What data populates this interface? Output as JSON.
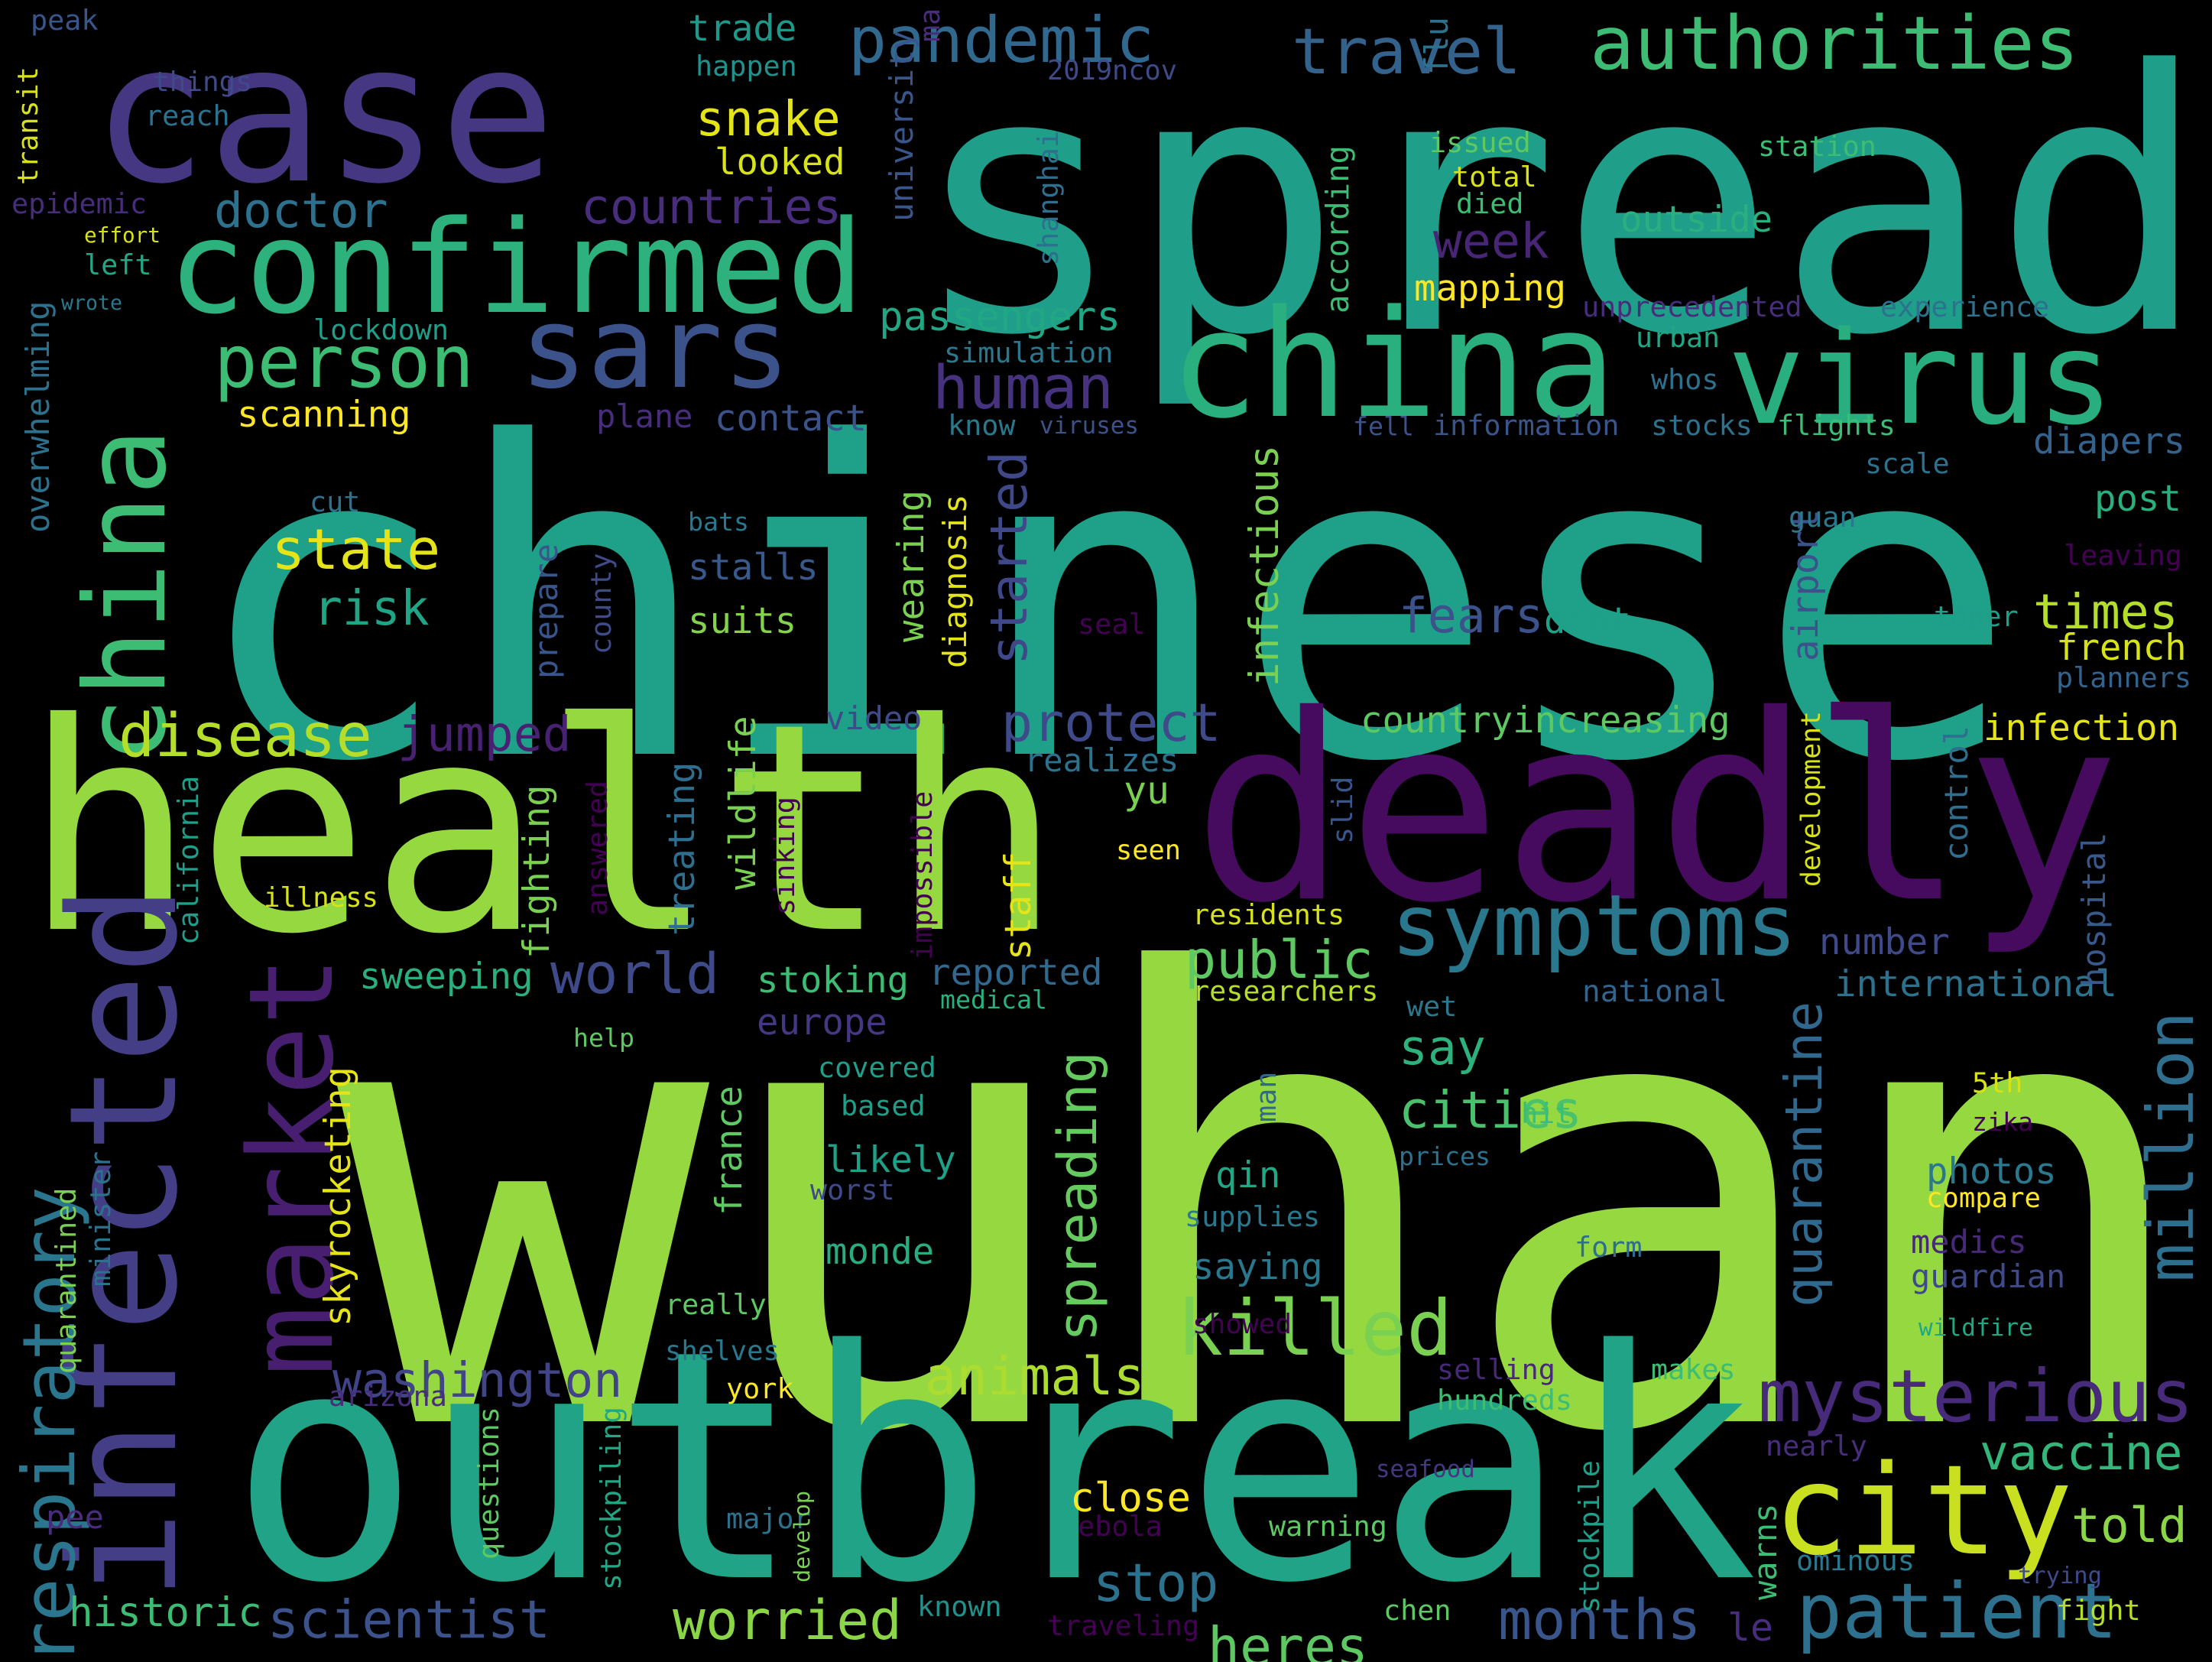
{
  "colors": {
    "background": "#000000",
    "palette": [
      "#440154",
      "#472d7b",
      "#3b528b",
      "#2c728e",
      "#21918c",
      "#28ae80",
      "#5ec962",
      "#addc30",
      "#fde725"
    ]
  },
  "words": [
    {
      "text": "wuhan",
      "color": "#95d840"
    },
    {
      "text": "chinese",
      "color": "#1fa088"
    },
    {
      "text": "spread",
      "color": "#1f9e89"
    },
    {
      "text": "outbreak",
      "color": "#20a386"
    },
    {
      "text": "health",
      "color": "#95d840"
    },
    {
      "text": "deadly",
      "color": "#460b5e"
    },
    {
      "text": "case",
      "color": "#453781"
    },
    {
      "text": "china",
      "color": "#2ab07f"
    },
    {
      "text": "virus",
      "color": "#29af7f"
    },
    {
      "text": "confirmed",
      "color": "#2db27d"
    },
    {
      "text": "infected",
      "color": "#433e85"
    },
    {
      "text": "market",
      "color": "#481f70"
    },
    {
      "text": "city",
      "color": "#c8e020"
    },
    {
      "text": "symptoms",
      "color": "#2a788e"
    },
    {
      "text": "sars",
      "color": "#3b528b"
    },
    {
      "text": "china",
      "color": "#3dbc74"
    },
    {
      "text": "mysterious",
      "color": "#472a7a"
    },
    {
      "text": "patient",
      "color": "#2d718e"
    },
    {
      "text": "killed",
      "color": "#7ad151"
    },
    {
      "text": "respiratory",
      "color": "#2a768e"
    },
    {
      "text": "million",
      "color": "#2e6e8e"
    },
    {
      "text": "authorities",
      "color": "#3dbc74"
    },
    {
      "text": "travel",
      "color": "#33638d"
    },
    {
      "text": "pandemic",
      "color": "#31688e"
    },
    {
      "text": "person",
      "color": "#3dbc74"
    },
    {
      "text": "human",
      "color": "#46327e"
    },
    {
      "text": "disease",
      "color": "#b5de2b"
    },
    {
      "text": "world",
      "color": "#3e4a89"
    },
    {
      "text": "state",
      "color": "#e5e419"
    },
    {
      "text": "washington",
      "color": "#414487"
    },
    {
      "text": "scientist",
      "color": "#3b528b"
    },
    {
      "text": "animals",
      "color": "#addc30"
    },
    {
      "text": "worried",
      "color": "#8bd646"
    },
    {
      "text": "months",
      "color": "#39568c"
    },
    {
      "text": "heres",
      "color": "#5ec962"
    },
    {
      "text": "stop",
      "color": "#2c728e"
    },
    {
      "text": "public",
      "color": "#5ec962"
    },
    {
      "text": "quarantine",
      "color": "#31688e"
    },
    {
      "text": "spreading",
      "color": "#65cb5e"
    },
    {
      "text": "protect",
      "color": "#3e4a89"
    },
    {
      "text": "jumped",
      "color": "#482173"
    },
    {
      "text": "fears",
      "color": "#3b528b"
    },
    {
      "text": "cities",
      "color": "#4ac16d"
    },
    {
      "text": "countries",
      "color": "#472d7b"
    },
    {
      "text": "snake",
      "color": "#e5e419"
    },
    {
      "text": "doctor",
      "color": "#2c728e"
    },
    {
      "text": "week",
      "color": "#482575"
    },
    {
      "text": "risk",
      "color": "#20a486"
    },
    {
      "text": "times",
      "color": "#b5de2b"
    },
    {
      "text": "vaccine",
      "color": "#32b67a"
    },
    {
      "text": "told",
      "color": "#8bd646"
    },
    {
      "text": "say",
      "color": "#2db27d"
    },
    {
      "text": "started",
      "color": "#3f4889"
    },
    {
      "text": "passengers",
      "color": "#22a785"
    },
    {
      "text": "trade",
      "color": "#1f988b"
    },
    {
      "text": "happen",
      "color": "#21918c"
    },
    {
      "text": "looked",
      "color": "#d8e219"
    },
    {
      "text": "outside",
      "color": "#2ab07f"
    },
    {
      "text": "mapping",
      "color": "#fde725"
    },
    {
      "text": "scanning",
      "color": "#fde725"
    },
    {
      "text": "contact",
      "color": "#3b528b"
    },
    {
      "text": "plane",
      "color": "#472d7b"
    },
    {
      "text": "suits",
      "color": "#84d44b"
    },
    {
      "text": "stalls",
      "color": "#38598c"
    },
    {
      "text": "dont",
      "color": "#1fa088"
    },
    {
      "text": "international",
      "color": "#2c728e"
    },
    {
      "text": "national",
      "color": "#32648e"
    },
    {
      "text": "number",
      "color": "#3e4a89"
    },
    {
      "text": "europe",
      "color": "#453781"
    },
    {
      "text": "reported",
      "color": "#31688e"
    },
    {
      "text": "stoking",
      "color": "#3dbc74"
    },
    {
      "text": "sweeping",
      "color": "#2ab07f"
    },
    {
      "text": "likely",
      "color": "#1fa088"
    },
    {
      "text": "monde",
      "color": "#27ad81"
    },
    {
      "text": "photos",
      "color": "#2a788e"
    },
    {
      "text": "medics",
      "color": "#482878"
    },
    {
      "text": "guardian",
      "color": "#3e4a89"
    },
    {
      "text": "compare",
      "color": "#fde725"
    },
    {
      "text": "saying",
      "color": "#2a788e"
    },
    {
      "text": "qin",
      "color": "#22a785"
    },
    {
      "text": "france",
      "color": "#5ec962"
    },
    {
      "text": "infection",
      "color": "#e5e419"
    },
    {
      "text": "french",
      "color": "#d8e219"
    },
    {
      "text": "diapers",
      "color": "#33638d"
    },
    {
      "text": "post",
      "color": "#2ab07f"
    },
    {
      "text": "airport",
      "color": "#3b528b"
    },
    {
      "text": "infectious",
      "color": "#7ad151"
    },
    {
      "text": "wearing",
      "color": "#7ad151"
    },
    {
      "text": "diagnosis",
      "color": "#e5e419"
    },
    {
      "text": "fighting",
      "color": "#7ad151"
    },
    {
      "text": "treating",
      "color": "#2e6e8e"
    },
    {
      "text": "wildlife",
      "color": "#7ad151"
    },
    {
      "text": "staff",
      "color": "#e5e419"
    },
    {
      "text": "countryincreasing",
      "color": "#5ec962"
    },
    {
      "text": "realizes",
      "color": "#2c728e"
    },
    {
      "text": "video",
      "color": "#3e4a89"
    },
    {
      "text": "prepare",
      "color": "#39568c"
    },
    {
      "text": "county",
      "color": "#3e4a89"
    },
    {
      "text": "according",
      "color": "#3dbc74"
    },
    {
      "text": "flu",
      "color": "#2c728e"
    },
    {
      "text": "university",
      "color": "#39568c"
    },
    {
      "text": "2019ncov",
      "color": "#3e4a89"
    },
    {
      "text": "ma",
      "color": "#472d7b"
    },
    {
      "text": "shanghai",
      "color": "#2e6e8e"
    },
    {
      "text": "issued",
      "color": "#5ec962"
    },
    {
      "text": "total",
      "color": "#d8e219"
    },
    {
      "text": "died",
      "color": "#3dbc74"
    },
    {
      "text": "station",
      "color": "#3dbc74"
    },
    {
      "text": "unprecedented",
      "color": "#472d7b"
    },
    {
      "text": "experience",
      "color": "#2c728e"
    },
    {
      "text": "urban",
      "color": "#22a785"
    },
    {
      "text": "simulation",
      "color": "#2a788e"
    },
    {
      "text": "whos",
      "color": "#2c728e"
    },
    {
      "text": "viruses",
      "color": "#3b528b"
    },
    {
      "text": "know",
      "color": "#2a788e"
    },
    {
      "text": "fell",
      "color": "#3b528b"
    },
    {
      "text": "information",
      "color": "#39568c"
    },
    {
      "text": "stocks",
      "color": "#2c728e"
    },
    {
      "text": "flights",
      "color": "#3dbc74"
    },
    {
      "text": "scale",
      "color": "#2c728e"
    },
    {
      "text": "guan",
      "color": "#2a788e"
    },
    {
      "text": "leaving",
      "color": "#440154"
    },
    {
      "text": "toner",
      "color": "#1f9e89"
    },
    {
      "text": "planners",
      "color": "#33638d"
    },
    {
      "text": "development",
      "color": "#d8e219"
    },
    {
      "text": "control",
      "color": "#2e6e8e"
    },
    {
      "text": "hospital",
      "color": "#38598c"
    },
    {
      "text": "slid",
      "color": "#39568c"
    },
    {
      "text": "yu",
      "color": "#7ad151"
    },
    {
      "text": "seen",
      "color": "#fde725"
    },
    {
      "text": "residents",
      "color": "#d8e219"
    },
    {
      "text": "researchers",
      "color": "#b5de2b"
    },
    {
      "text": "medical",
      "color": "#2ab07f"
    },
    {
      "text": "wet",
      "color": "#2a788e"
    },
    {
      "text": "man",
      "color": "#31688e"
    },
    {
      "text": "hit",
      "color": "#3dbc74"
    },
    {
      "text": "prices",
      "color": "#2c728e"
    },
    {
      "text": "5th",
      "color": "#d8e219"
    },
    {
      "text": "zika",
      "color": "#440154"
    },
    {
      "text": "supplies",
      "color": "#2a788e"
    },
    {
      "text": "form",
      "color": "#2e6e8e"
    },
    {
      "text": "showed",
      "color": "#440154"
    },
    {
      "text": "wildfire",
      "color": "#22a785"
    },
    {
      "text": "makes",
      "color": "#3dbc74"
    },
    {
      "text": "hundreds",
      "color": "#3dbc74"
    },
    {
      "text": "selling",
      "color": "#482878"
    },
    {
      "text": "nearly",
      "color": "#472d7b"
    },
    {
      "text": "warns",
      "color": "#3dbc74"
    },
    {
      "text": "stockpile",
      "color": "#1f9e89"
    },
    {
      "text": "seafood",
      "color": "#453781"
    },
    {
      "text": "ominous",
      "color": "#2a788e"
    },
    {
      "text": "trying",
      "color": "#3e4a89"
    },
    {
      "text": "fight",
      "color": "#b5de2b"
    },
    {
      "text": "le",
      "color": "#472d7b"
    },
    {
      "text": "chen",
      "color": "#5ec962"
    },
    {
      "text": "traveling",
      "color": "#440154"
    },
    {
      "text": "known",
      "color": "#21918c"
    },
    {
      "text": "warning",
      "color": "#5ec962"
    },
    {
      "text": "close",
      "color": "#fde725"
    },
    {
      "text": "ebola",
      "color": "#440154"
    },
    {
      "text": "major",
      "color": "#2c728e"
    },
    {
      "text": "develop",
      "color": "#7ad151"
    },
    {
      "text": "york",
      "color": "#fde725"
    },
    {
      "text": "really",
      "color": "#5ec962"
    },
    {
      "text": "shelves",
      "color": "#2a788e"
    },
    {
      "text": "questions",
      "color": "#5ec962"
    },
    {
      "text": "stockpiling",
      "color": "#22a785"
    },
    {
      "text": "arizona",
      "color": "#472d7b"
    },
    {
      "text": "historic",
      "color": "#3dbc74"
    },
    {
      "text": "pee",
      "color": "#472d7b"
    },
    {
      "text": "quarantined",
      "color": "#7ad151"
    },
    {
      "text": "skyrocketing",
      "color": "#e5e419"
    },
    {
      "text": "minister",
      "color": "#2c728e"
    },
    {
      "text": "california",
      "color": "#1f9e89"
    },
    {
      "text": "illness",
      "color": "#d8e219"
    },
    {
      "text": "help",
      "color": "#5ec962"
    },
    {
      "text": "covered",
      "color": "#1f9e89"
    },
    {
      "text": "based",
      "color": "#1f9e89"
    },
    {
      "text": "worst",
      "color": "#3e4a89"
    },
    {
      "text": "answered",
      "color": "#440154"
    },
    {
      "text": "sinking",
      "color": "#440154"
    },
    {
      "text": "impossible",
      "color": "#440154"
    },
    {
      "text": "seal",
      "color": "#440154"
    },
    {
      "text": "bats",
      "color": "#2a788e"
    },
    {
      "text": "cut",
      "color": "#2c728e"
    },
    {
      "text": "overwhelming",
      "color": "#2c728e"
    },
    {
      "text": "lockdown",
      "color": "#1f9e89"
    },
    {
      "text": "wrote",
      "color": "#2a788e"
    },
    {
      "text": "left",
      "color": "#22a785"
    },
    {
      "text": "effort",
      "color": "#d8e219"
    },
    {
      "text": "epidemic",
      "color": "#472d7b"
    },
    {
      "text": "transit",
      "color": "#d8e219"
    },
    {
      "text": "peak",
      "color": "#39568c"
    },
    {
      "text": "things",
      "color": "#3e4a89"
    },
    {
      "text": "reach",
      "color": "#2c728e"
    }
  ]
}
